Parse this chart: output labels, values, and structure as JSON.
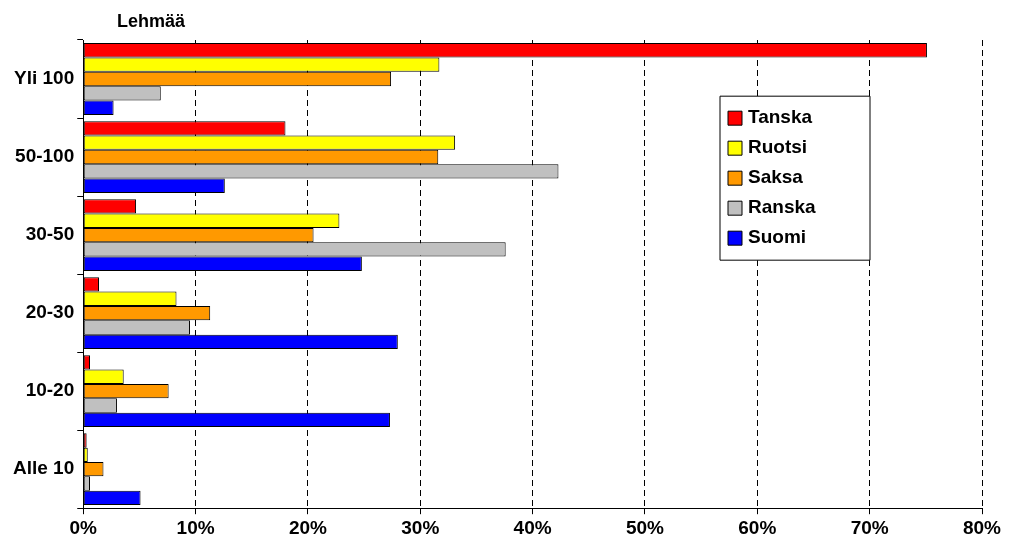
{
  "chart_data": {
    "type": "bar",
    "orientation": "horizontal",
    "ylabel": "Lehmää",
    "categories": [
      "Yli 100",
      "50-100",
      "30-50",
      "20-30",
      "10-20",
      "Alle 10"
    ],
    "series": [
      {
        "name": "Tanska",
        "color": "#ff0000",
        "values": [
          75.1,
          18.0,
          4.7,
          1.4,
          0.6,
          0.3
        ]
      },
      {
        "name": "Ruotsi",
        "color": "#ffff00",
        "values": [
          31.7,
          33.1,
          22.8,
          8.3,
          3.6,
          0.4
        ]
      },
      {
        "name": "Saksa",
        "color": "#ff9900",
        "values": [
          27.4,
          31.6,
          20.5,
          11.3,
          7.6,
          1.8
        ]
      },
      {
        "name": "Ranska",
        "color": "#c0c0c0",
        "values": [
          6.9,
          42.3,
          37.6,
          9.5,
          3.0,
          0.6
        ]
      },
      {
        "name": "Suomi",
        "color": "#0000ff",
        "values": [
          2.7,
          12.6,
          24.8,
          28.0,
          27.3,
          5.1
        ]
      }
    ],
    "xlim": [
      0,
      80
    ],
    "xticks": [
      {
        "value": 0,
        "label": "0%"
      },
      {
        "value": 10,
        "label": "10%"
      },
      {
        "value": 20,
        "label": "20%"
      },
      {
        "value": 30,
        "label": "30%"
      },
      {
        "value": 40,
        "label": "40%"
      },
      {
        "value": 50,
        "label": "50%"
      },
      {
        "value": 60,
        "label": "60%"
      },
      {
        "value": 70,
        "label": "70%"
      },
      {
        "value": 80,
        "label": "80%"
      }
    ],
    "grid": "x",
    "legend": "right"
  }
}
